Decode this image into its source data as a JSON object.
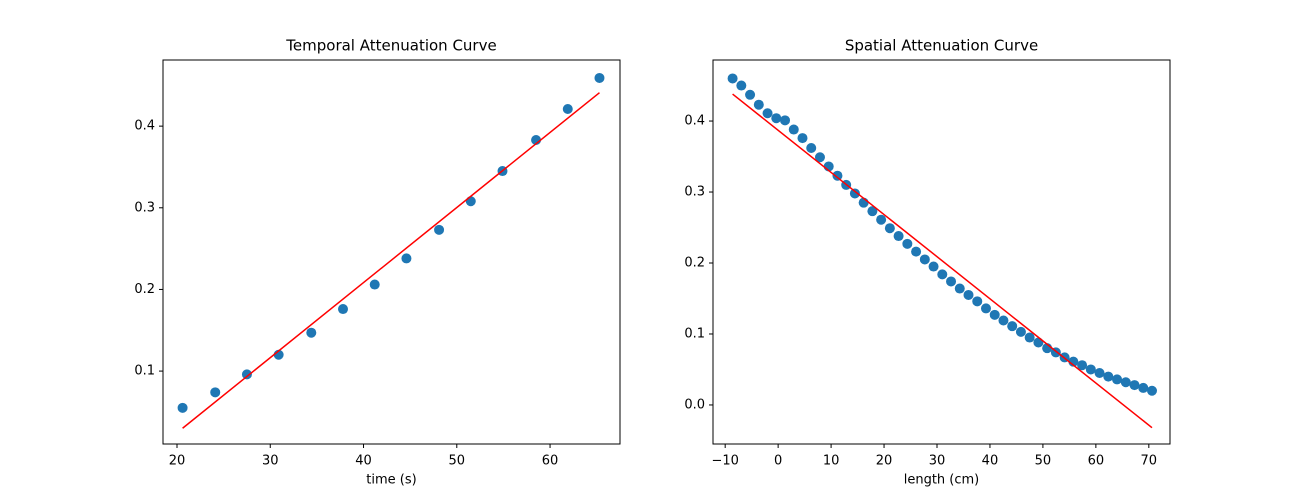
{
  "chart_data": [
    {
      "type": "scatter",
      "title": "Temporal Attenuation Curve",
      "x_label": "time (s)",
      "xlim": [
        18.5,
        67.5
      ],
      "ylim": [
        0.0107,
        0.481
      ],
      "xticks": [
        20,
        30,
        40,
        50,
        60
      ],
      "yticks": [
        0.1,
        0.2,
        0.3,
        0.4
      ],
      "series": [
        {
          "type": "scatter",
          "color": "#1f77b4",
          "x": [
            20.6,
            24.1,
            27.5,
            30.9,
            34.4,
            37.8,
            41.2,
            44.6,
            48.1,
            51.5,
            54.9,
            58.5,
            61.9,
            65.3
          ],
          "values": [
            0.055,
            0.074,
            0.096,
            0.12,
            0.147,
            0.176,
            0.206,
            0.238,
            0.273,
            0.308,
            0.345,
            0.383,
            0.421,
            0.459
          ]
        },
        {
          "type": "line",
          "color": "#ff0000",
          "x": [
            20.6,
            65.3
          ],
          "values": [
            0.03,
            0.441
          ]
        }
      ]
    },
    {
      "type": "scatter",
      "title": "Spatial Attenuation Curve",
      "x_label": "length (cm)",
      "xlim": [
        -12.3,
        74.0
      ],
      "ylim": [
        -0.055,
        0.486
      ],
      "xticks": [
        {
          "value": -10,
          "label": "−10"
        },
        0,
        10,
        20,
        30,
        40,
        50,
        60,
        70
      ],
      "yticks": [
        {
          "value": 0,
          "label": "0.0"
        },
        0.1,
        0.2,
        0.3,
        0.4
      ],
      "series": [
        {
          "type": "scatter",
          "color": "#1f77b4",
          "x": [
            -8.6,
            -6.95,
            -5.3,
            -3.65,
            -2.0,
            -0.35,
            1.3,
            2.95,
            4.6,
            6.25,
            7.9,
            9.55,
            11.2,
            12.85,
            14.5,
            16.15,
            17.8,
            19.45,
            21.1,
            22.75,
            24.4,
            26.05,
            27.7,
            29.35,
            31.0,
            32.65,
            34.3,
            35.95,
            37.6,
            39.25,
            40.9,
            42.55,
            44.2,
            45.85,
            47.5,
            49.15,
            50.8,
            52.45,
            54.1,
            55.75,
            57.4,
            59.05,
            60.7,
            62.35,
            64.0,
            65.65,
            67.3,
            68.95,
            70.6
          ],
          "values": [
            0.46,
            0.45,
            0.437,
            0.423,
            0.411,
            0.404,
            0.401,
            0.388,
            0.376,
            0.362,
            0.349,
            0.336,
            0.323,
            0.31,
            0.298,
            0.285,
            0.273,
            0.261,
            0.249,
            0.238,
            0.227,
            0.216,
            0.205,
            0.195,
            0.184,
            0.174,
            0.164,
            0.155,
            0.146,
            0.136,
            0.127,
            0.119,
            0.111,
            0.103,
            0.095,
            0.088,
            0.08,
            0.074,
            0.067,
            0.061,
            0.056,
            0.05,
            0.045,
            0.04,
            0.036,
            0.032,
            0.028,
            0.024,
            0.02
          ]
        },
        {
          "type": "line",
          "color": "#ff0000",
          "x": [
            -8.6,
            70.6
          ],
          "values": [
            0.438,
            -0.032
          ]
        }
      ]
    }
  ]
}
